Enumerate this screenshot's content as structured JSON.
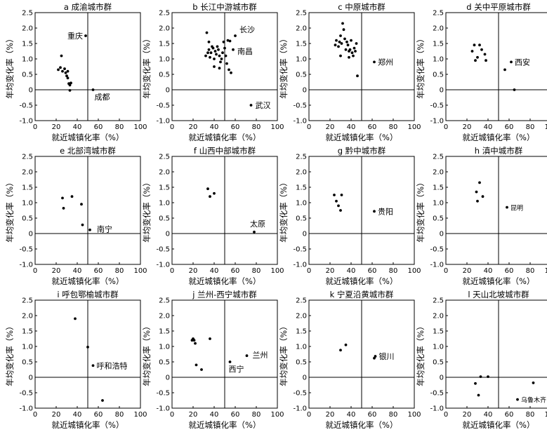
{
  "chart_data": [
    {
      "type": "scatter",
      "title": "a 成渝城市群",
      "xlabel": "就近城镇化率（%）",
      "ylabel": "年均变化率（%）",
      "xlim": [
        0,
        100
      ],
      "ylim": [
        -1.0,
        2.5
      ],
      "xticks": [
        "0",
        "20",
        "40",
        "60",
        "80",
        "100"
      ],
      "yticks": [
        "-1.0",
        "-0.5",
        "0",
        "0.5",
        "1.0",
        "1.5",
        "2.0",
        "2.5"
      ],
      "annotations": [
        {
          "text": "重庆",
          "x": 48,
          "y": 1.75
        },
        {
          "text": "成都",
          "x": 55,
          "y": 0
        }
      ],
      "points": [
        [
          48,
          1.75
        ],
        [
          25,
          1.1
        ],
        [
          22,
          0.65
        ],
        [
          24,
          0.72
        ],
        [
          26,
          0.6
        ],
        [
          28,
          0.68
        ],
        [
          29,
          0.55
        ],
        [
          30,
          0.45
        ],
        [
          31,
          0.6
        ],
        [
          32,
          0.2
        ],
        [
          33,
          0.15
        ],
        [
          34,
          0.22
        ],
        [
          31,
          0.38
        ],
        [
          33,
          -0.02
        ],
        [
          55,
          0
        ]
      ]
    },
    {
      "type": "scatter",
      "title": "b 长江中游城市群",
      "xlabel": "就近城镇化率（%）",
      "ylabel": "年均变化率（%）",
      "xlim": [
        0,
        100
      ],
      "ylim": [
        -1.0,
        2.5
      ],
      "xticks": [
        "0",
        "20",
        "40",
        "60",
        "80",
        "100"
      ],
      "yticks": [
        "-1.0",
        "-0.5",
        "0",
        "0.5",
        "1.0",
        "1.5",
        "2.0",
        "2.5"
      ],
      "annotations": [
        {
          "text": "长沙",
          "x": 60,
          "y": 1.75
        },
        {
          "text": "南昌",
          "x": 58,
          "y": 1.3
        },
        {
          "text": "武汉",
          "x": 75,
          "y": -0.5
        }
      ],
      "points": [
        [
          33,
          1.85
        ],
        [
          35,
          1.55
        ],
        [
          32,
          1.1
        ],
        [
          34,
          1.2
        ],
        [
          35,
          1.3
        ],
        [
          36,
          1.05
        ],
        [
          37,
          1.2
        ],
        [
          38,
          1.4
        ],
        [
          39,
          1.35
        ],
        [
          40,
          1.0
        ],
        [
          40,
          0.75
        ],
        [
          41,
          1.25
        ],
        [
          42,
          1.15
        ],
        [
          43,
          1.4
        ],
        [
          44,
          1.3
        ],
        [
          45,
          1.1
        ],
        [
          45,
          0.7
        ],
        [
          46,
          0.9
        ],
        [
          47,
          1.0
        ],
        [
          48,
          1.2
        ],
        [
          49,
          1.55
        ],
        [
          50,
          1.35
        ],
        [
          51,
          1.1
        ],
        [
          52,
          0.85
        ],
        [
          53,
          1.6
        ],
        [
          55,
          1.58
        ],
        [
          54,
          0.65
        ],
        [
          56,
          0.55
        ],
        [
          60,
          1.75
        ],
        [
          58,
          1.3
        ],
        [
          75,
          -0.5
        ]
      ]
    },
    {
      "type": "scatter",
      "title": "c 中原城市群",
      "xlabel": "就近城镇化率（%）",
      "ylabel": "年均变化率（%）",
      "xlim": [
        0,
        100
      ],
      "ylim": [
        -1.0,
        2.5
      ],
      "xticks": [
        "0",
        "20",
        "40",
        "60",
        "80",
        "100"
      ],
      "yticks": [
        "-1.0",
        "-0.5",
        "0",
        "0.5",
        "1.0",
        "1.5",
        "2.0",
        "2.5"
      ],
      "annotations": [
        {
          "text": "郑州",
          "x": 62,
          "y": 0.9
        }
      ],
      "points": [
        [
          25,
          1.45
        ],
        [
          26,
          1.6
        ],
        [
          28,
          1.4
        ],
        [
          29,
          1.55
        ],
        [
          30,
          1.75
        ],
        [
          31,
          1.5
        ],
        [
          32,
          2.15
        ],
        [
          33,
          1.95
        ],
        [
          34,
          1.65
        ],
        [
          35,
          1.3
        ],
        [
          36,
          1.55
        ],
        [
          37,
          1.45
        ],
        [
          38,
          1.25
        ],
        [
          39,
          1.3
        ],
        [
          40,
          1.6
        ],
        [
          41,
          1.2
        ],
        [
          42,
          1.1
        ],
        [
          43,
          1.35
        ],
        [
          44,
          1.25
        ],
        [
          45,
          1.5
        ],
        [
          38,
          1.05
        ],
        [
          30,
          1.1
        ],
        [
          46,
          0.45
        ],
        [
          62,
          0.9
        ]
      ]
    },
    {
      "type": "scatter",
      "title": "d 关中平原城市群",
      "xlabel": "就近城镇化率（%）",
      "ylabel": "年均变化率（%）",
      "xlim": [
        0,
        100
      ],
      "ylim": [
        -1.0,
        2.5
      ],
      "xticks": [
        "0",
        "20",
        "40",
        "60",
        "80",
        "100"
      ],
      "yticks": [
        "-1.0",
        "-0.5",
        "0",
        "0.5",
        "1.0",
        "1.5",
        "2.0",
        "2.5"
      ],
      "annotations": [
        {
          "text": "西安",
          "x": 62,
          "y": 0.9
        }
      ],
      "points": [
        [
          25,
          1.25
        ],
        [
          27,
          1.45
        ],
        [
          28,
          0.95
        ],
        [
          30,
          1.05
        ],
        [
          32,
          1.45
        ],
        [
          34,
          1.3
        ],
        [
          37,
          1.15
        ],
        [
          38,
          0.95
        ],
        [
          56,
          0.65
        ],
        [
          62,
          0.9
        ],
        [
          65,
          0.0
        ]
      ]
    },
    {
      "type": "scatter",
      "title": "e 北部湾城市群",
      "xlabel": "就近城镇化率（%）",
      "ylabel": "年均变化率（%）",
      "xlim": [
        0,
        100
      ],
      "ylim": [
        -1.0,
        2.5
      ],
      "xticks": [
        "0",
        "20",
        "40",
        "60",
        "80",
        "100"
      ],
      "yticks": [
        "-1.0",
        "-0.5",
        "0",
        "0.5",
        "1.0",
        "1.5",
        "2.0",
        "2.5"
      ],
      "annotations": [
        {
          "text": "南宁",
          "x": 52,
          "y": 0.12
        }
      ],
      "points": [
        [
          26,
          1.15
        ],
        [
          27,
          0.82
        ],
        [
          35,
          1.2
        ],
        [
          44,
          0.95
        ],
        [
          45,
          0.28
        ],
        [
          52,
          0.12
        ]
      ]
    },
    {
      "type": "scatter",
      "title": "f 山西中部城市群",
      "xlabel": "就近城镇化率（%）",
      "ylabel": "年均变化率（%）",
      "xlim": [
        0,
        100
      ],
      "ylim": [
        -1.0,
        2.5
      ],
      "xticks": [
        "0",
        "20",
        "40",
        "60",
        "80",
        "100"
      ],
      "yticks": [
        "-1.0",
        "-0.5",
        "0",
        "0.5",
        "1.0",
        "1.5",
        "2.0",
        "2.5"
      ],
      "annotations": [
        {
          "text": "太原",
          "x": 78,
          "y": 0.05
        }
      ],
      "points": [
        [
          34,
          1.45
        ],
        [
          36,
          1.2
        ],
        [
          40,
          1.3
        ],
        [
          78,
          0.05
        ]
      ]
    },
    {
      "type": "scatter",
      "title": "g 黔中城市群",
      "xlabel": "就近城镇化率（%）",
      "ylabel": "年均变化率（%）",
      "xlim": [
        0,
        100
      ],
      "ylim": [
        -1.0,
        2.5
      ],
      "xticks": [
        "0",
        "20",
        "40",
        "60",
        "80",
        "100"
      ],
      "yticks": [
        "-1.0",
        "-0.5",
        "0",
        "0.5",
        "1.0",
        "1.5",
        "2.0",
        "2.5"
      ],
      "annotations": [
        {
          "text": "贵阳",
          "x": 62,
          "y": 0.72
        }
      ],
      "points": [
        [
          24,
          1.25
        ],
        [
          26,
          1.05
        ],
        [
          28,
          0.9
        ],
        [
          30,
          0.75
        ],
        [
          31,
          1.25
        ],
        [
          62,
          0.72
        ]
      ]
    },
    {
      "type": "scatter",
      "title": "h 滇中城市群",
      "xlabel": "就近城镇化率（%）",
      "ylabel": "年均变化率（%）",
      "xlim": [
        0,
        100
      ],
      "ylim": [
        -1.0,
        2.5
      ],
      "xticks": [
        "0",
        "20",
        "40",
        "60",
        "80",
        "100"
      ],
      "yticks": [
        "-1.0",
        "-0.5",
        "0",
        "0.5",
        "1.0",
        "1.5",
        "2.0",
        "2.5"
      ],
      "annotations": [
        {
          "text": "昆明",
          "x": 58,
          "y": 0.85
        }
      ],
      "points": [
        [
          29,
          1.35
        ],
        [
          30,
          1.05
        ],
        [
          32,
          1.65
        ],
        [
          35,
          1.2
        ],
        [
          58,
          0.85
        ]
      ]
    },
    {
      "type": "scatter",
      "title": "i 呼包鄂榆城市群",
      "xlabel": "就近城镇化率（%）",
      "ylabel": "年均变化率（%）",
      "xlim": [
        0,
        100
      ],
      "ylim": [
        -1.0,
        2.5
      ],
      "xticks": [
        "0",
        "20",
        "40",
        "60",
        "80",
        "100"
      ],
      "yticks": [
        "-1.0",
        "-0.5",
        "0",
        "0.5",
        "1.0",
        "1.5",
        "2.0",
        "2.5"
      ],
      "annotations": [
        {
          "text": "呼和浩特",
          "x": 55,
          "y": 0.38
        }
      ],
      "points": [
        [
          38,
          1.9
        ],
        [
          50,
          0.98
        ],
        [
          55,
          0.38
        ],
        [
          64,
          -0.75
        ]
      ]
    },
    {
      "type": "scatter",
      "title": "j 兰州-西宁城市群",
      "xlabel": "就近城镇化率（%）",
      "ylabel": "年均变化率（%）",
      "xlim": [
        0,
        100
      ],
      "ylim": [
        -1.0,
        2.5
      ],
      "xticks": [
        "0",
        "20",
        "40",
        "60",
        "80",
        "100"
      ],
      "yticks": [
        "-1.0",
        "-0.5",
        "0",
        "0.5",
        "1.0",
        "1.5",
        "2.0",
        "2.5"
      ],
      "annotations": [
        {
          "text": "兰州",
          "x": 71,
          "y": 0.7
        },
        {
          "text": "西宁",
          "x": 55,
          "y": 0.5
        }
      ],
      "points": [
        [
          19,
          1.2
        ],
        [
          20,
          1.25
        ],
        [
          21,
          1.2
        ],
        [
          22,
          1.1
        ],
        [
          23,
          0.4
        ],
        [
          28,
          0.25
        ],
        [
          36,
          1.25
        ],
        [
          55,
          0.5
        ],
        [
          71,
          0.7
        ]
      ]
    },
    {
      "type": "scatter",
      "title": "k 宁夏沿黄城市群",
      "xlabel": "就近城镇化率（%）",
      "ylabel": "年均变化率（%）",
      "xlim": [
        0,
        100
      ],
      "ylim": [
        -1.0,
        2.5
      ],
      "xticks": [
        "0",
        "20",
        "40",
        "60",
        "80",
        "100"
      ],
      "yticks": [
        "-1.0",
        "-0.5",
        "0",
        "0.5",
        "1.0",
        "1.5",
        "2.0",
        "2.5"
      ],
      "annotations": [
        {
          "text": "银川",
          "x": 63,
          "y": 0.68
        }
      ],
      "points": [
        [
          30,
          0.88
        ],
        [
          35,
          1.05
        ],
        [
          62,
          0.62
        ],
        [
          63,
          0.68
        ]
      ]
    },
    {
      "type": "scatter",
      "title": "l 天山北坡城市群",
      "xlabel": "就近城镇化率（%）",
      "ylabel": "年均变化率（%）",
      "xlim": [
        0,
        100
      ],
      "ylim": [
        -1.0,
        2.5
      ],
      "xticks": [
        "0",
        "20",
        "40",
        "60",
        "80",
        "100"
      ],
      "yticks": [
        "-1.0",
        "-0.5",
        "0",
        "0.5",
        "1.0",
        "1.5",
        "2.0",
        "2.5"
      ],
      "annotations": [
        {
          "text": "乌鲁木齐",
          "x": 68,
          "y": -0.72
        }
      ],
      "points": [
        [
          28,
          -0.2
        ],
        [
          31,
          -0.58
        ],
        [
          33,
          0.02
        ],
        [
          40,
          0.02
        ],
        [
          68,
          -0.72
        ],
        [
          83,
          -0.18
        ]
      ]
    }
  ]
}
